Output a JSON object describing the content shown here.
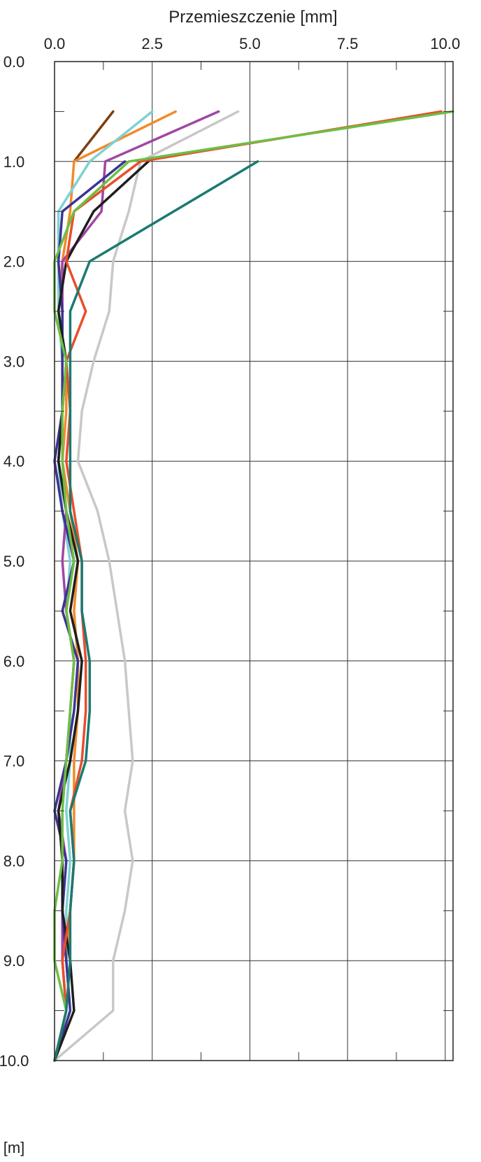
{
  "chart_data": {
    "type": "line",
    "xlabel": "Przemieszczenie [mm]",
    "ylabel": "[m]",
    "xlim": [
      0,
      10.2
    ],
    "ylim": [
      0,
      10
    ],
    "y_inverted": true,
    "x_axis_position": "top",
    "x_ticks": [
      0.0,
      2.5,
      5.0,
      7.5,
      10.0
    ],
    "x_tick_labels": [
      "0.0",
      "2.5",
      "5.0",
      "7.5",
      "10.0"
    ],
    "y_ticks": [
      0.0,
      1.0,
      2.0,
      3.0,
      4.0,
      5.0,
      6.0,
      7.0,
      8.0,
      9.0,
      10.0
    ],
    "y_tick_labels": [
      "0.0",
      "1.0",
      "2.0",
      "3.0",
      "4.0",
      "5.0",
      "6.0",
      "7.0",
      "8.0",
      "9.0",
      "10.0"
    ],
    "grid": true,
    "series": [
      {
        "color": "#7B3F10",
        "points": [
          [
            1.5,
            0.5
          ],
          [
            0.5,
            1.0
          ]
        ]
      },
      {
        "color": "#F28A2B",
        "points": [
          [
            3.1,
            0.5
          ],
          [
            0.5,
            1.0
          ],
          [
            0.4,
            1.5
          ],
          [
            0.2,
            2.0
          ],
          [
            0.1,
            2.5
          ],
          [
            0.3,
            3.0
          ],
          [
            0.3,
            3.5
          ],
          [
            0.2,
            4.0
          ],
          [
            0.4,
            4.5
          ],
          [
            0.6,
            5.0
          ],
          [
            0.5,
            5.5
          ],
          [
            0.6,
            6.0
          ],
          [
            0.6,
            6.5
          ],
          [
            0.5,
            7.0
          ],
          [
            0.5,
            7.5
          ],
          [
            0.5,
            8.0
          ],
          [
            0.4,
            8.5
          ],
          [
            0.3,
            9.0
          ],
          [
            0.4,
            9.5
          ],
          [
            0.0,
            10.0
          ]
        ]
      },
      {
        "color": "#7FD1D3",
        "points": [
          [
            2.5,
            0.5
          ],
          [
            0.9,
            1.0
          ],
          [
            0.1,
            1.5
          ],
          [
            0.1,
            2.0
          ],
          [
            0.1,
            2.5
          ],
          [
            0.2,
            3.0
          ],
          [
            0.2,
            3.5
          ],
          [
            0.1,
            4.0
          ],
          [
            0.2,
            4.5
          ],
          [
            0.4,
            5.0
          ],
          [
            0.3,
            5.5
          ],
          [
            0.5,
            6.0
          ],
          [
            0.4,
            6.5
          ],
          [
            0.4,
            7.0
          ],
          [
            0.3,
            7.5
          ],
          [
            0.4,
            8.0
          ],
          [
            0.3,
            8.5
          ],
          [
            0.3,
            9.0
          ],
          [
            0.4,
            9.5
          ],
          [
            0.0,
            10.0
          ]
        ]
      },
      {
        "color": "#A046A6",
        "points": [
          [
            4.2,
            0.5
          ],
          [
            1.3,
            1.0
          ],
          [
            1.2,
            1.5
          ],
          [
            0.2,
            2.0
          ],
          [
            0.2,
            2.5
          ],
          [
            0.2,
            3.0
          ],
          [
            0.2,
            3.5
          ],
          [
            0.1,
            4.0
          ],
          [
            0.3,
            4.5
          ],
          [
            0.2,
            5.0
          ],
          [
            0.3,
            5.5
          ],
          [
            0.5,
            6.0
          ],
          [
            0.4,
            6.5
          ],
          [
            0.3,
            7.0
          ],
          [
            0.1,
            7.5
          ],
          [
            0.3,
            8.0
          ],
          [
            0.2,
            8.5
          ],
          [
            0.2,
            9.0
          ],
          [
            0.3,
            9.5
          ],
          [
            0.0,
            10.0
          ]
        ]
      },
      {
        "color": "#C8C8C8",
        "points": [
          [
            4.7,
            0.5
          ],
          [
            2.2,
            1.0
          ],
          [
            1.9,
            1.5
          ],
          [
            1.5,
            2.0
          ],
          [
            1.4,
            2.5
          ],
          [
            1.0,
            3.0
          ],
          [
            0.7,
            3.5
          ],
          [
            0.6,
            4.0
          ],
          [
            1.1,
            4.5
          ],
          [
            1.4,
            5.0
          ],
          [
            1.6,
            5.5
          ],
          [
            1.8,
            6.0
          ],
          [
            1.9,
            6.5
          ],
          [
            2.0,
            7.0
          ],
          [
            1.8,
            7.5
          ],
          [
            2.0,
            8.0
          ],
          [
            1.8,
            8.5
          ],
          [
            1.5,
            9.0
          ],
          [
            1.5,
            9.5
          ],
          [
            0.0,
            10.0
          ]
        ]
      },
      {
        "color": "#3A3594",
        "points": [
          [
            1.8,
            1.0
          ],
          [
            0.2,
            1.5
          ],
          [
            0.1,
            2.0
          ],
          [
            0.2,
            2.5
          ],
          [
            0.2,
            3.0
          ],
          [
            0.2,
            3.5
          ],
          [
            0.0,
            4.0
          ],
          [
            0.2,
            4.5
          ],
          [
            0.5,
            5.0
          ],
          [
            0.2,
            5.5
          ],
          [
            0.6,
            6.0
          ],
          [
            0.5,
            6.5
          ],
          [
            0.3,
            7.0
          ],
          [
            0.0,
            7.5
          ],
          [
            0.3,
            8.0
          ],
          [
            0.2,
            8.5
          ],
          [
            0.3,
            9.0
          ],
          [
            0.4,
            9.5
          ],
          [
            0.0,
            10.0
          ]
        ]
      },
      {
        "color": "#1E1E1E",
        "points": [
          [
            2.4,
            1.0
          ],
          [
            1.0,
            1.5
          ],
          [
            0.3,
            2.0
          ],
          [
            0.1,
            2.5
          ],
          [
            0.3,
            3.0
          ],
          [
            0.2,
            3.5
          ],
          [
            0.1,
            4.0
          ],
          [
            0.3,
            4.5
          ],
          [
            0.6,
            5.0
          ],
          [
            0.4,
            5.5
          ],
          [
            0.7,
            6.0
          ],
          [
            0.6,
            6.5
          ],
          [
            0.4,
            7.0
          ],
          [
            0.1,
            7.5
          ],
          [
            0.2,
            8.0
          ],
          [
            0.2,
            8.5
          ],
          [
            0.4,
            9.0
          ],
          [
            0.5,
            9.5
          ],
          [
            0.0,
            10.0
          ]
        ]
      },
      {
        "color": "#E84E2A",
        "points": [
          [
            9.9,
            0.5
          ],
          [
            2.2,
            1.0
          ],
          [
            0.5,
            1.5
          ],
          [
            0.3,
            2.0
          ],
          [
            0.8,
            2.5
          ],
          [
            0.3,
            3.0
          ],
          [
            0.4,
            3.5
          ],
          [
            0.3,
            4.0
          ],
          [
            0.5,
            4.5
          ],
          [
            0.7,
            5.0
          ],
          [
            0.7,
            5.5
          ],
          [
            0.8,
            6.0
          ],
          [
            0.8,
            6.5
          ],
          [
            0.7,
            7.0
          ],
          [
            0.4,
            7.5
          ],
          [
            0.5,
            8.0
          ],
          [
            0.4,
            8.5
          ],
          [
            0.2,
            9.0
          ],
          [
            0.3,
            9.5
          ],
          [
            0.0,
            10.0
          ]
        ]
      },
      {
        "color": "#6DBE45",
        "points": [
          [
            10.2,
            0.5
          ],
          [
            1.9,
            1.0
          ],
          [
            0.5,
            1.5
          ],
          [
            0.0,
            2.0
          ],
          [
            0.0,
            2.5
          ],
          [
            0.3,
            3.0
          ],
          [
            0.2,
            3.5
          ],
          [
            0.2,
            4.0
          ],
          [
            0.3,
            4.5
          ],
          [
            0.5,
            5.0
          ],
          [
            0.3,
            5.5
          ],
          [
            0.5,
            6.0
          ],
          [
            0.4,
            6.5
          ],
          [
            0.3,
            7.0
          ],
          [
            0.2,
            7.5
          ],
          [
            0.2,
            8.0
          ],
          [
            0.0,
            8.5
          ],
          [
            0.0,
            9.0
          ],
          [
            0.3,
            9.5
          ],
          [
            0.0,
            10.0
          ]
        ]
      },
      {
        "color": "#1A7A72",
        "points": [
          [
            5.2,
            1.0
          ],
          [
            0.9,
            2.0
          ],
          [
            0.4,
            2.5
          ],
          [
            0.4,
            3.0
          ],
          [
            0.4,
            3.5
          ],
          [
            0.4,
            4.0
          ],
          [
            0.4,
            4.5
          ],
          [
            0.7,
            5.0
          ],
          [
            0.7,
            5.5
          ],
          [
            0.9,
            6.0
          ],
          [
            0.9,
            6.5
          ],
          [
            0.8,
            7.0
          ],
          [
            0.4,
            7.5
          ],
          [
            0.5,
            8.0
          ],
          [
            0.4,
            8.5
          ],
          [
            0.4,
            9.0
          ],
          [
            0.3,
            9.5
          ],
          [
            0.0,
            10.0
          ]
        ]
      }
    ]
  }
}
